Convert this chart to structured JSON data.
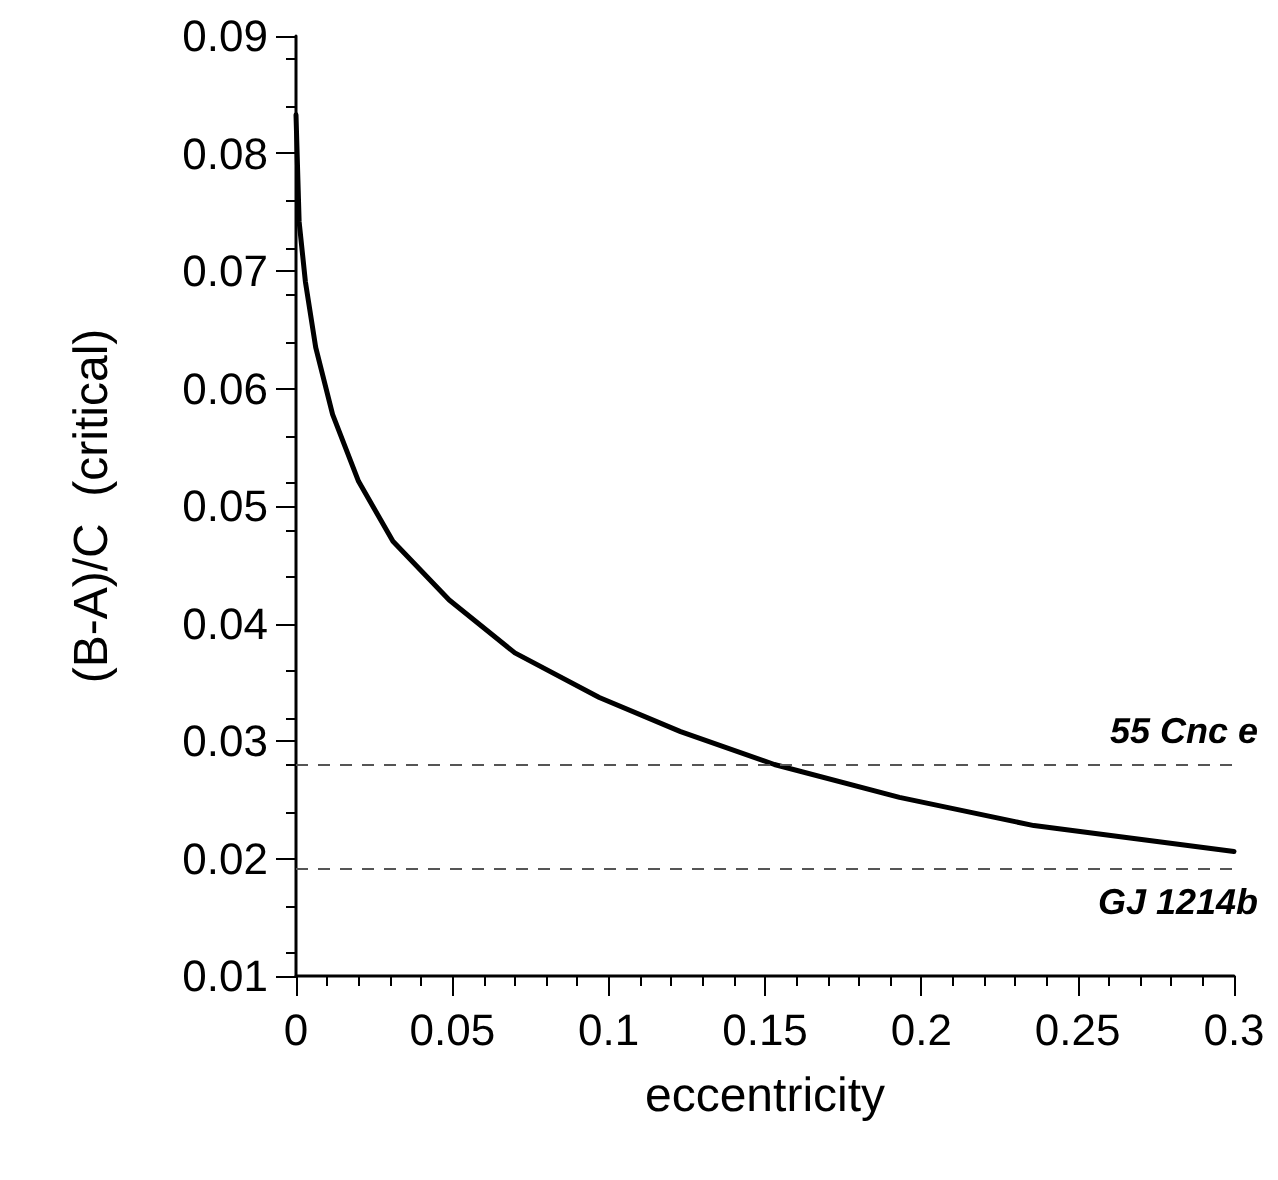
{
  "chart_data": {
    "type": "line",
    "xlabel": "eccentricity",
    "ylabel": "(B-A)/C  (critical)",
    "xlim": [
      0,
      0.3
    ],
    "xticks": [
      0,
      0.05,
      0.1,
      0.15,
      0.2,
      0.25,
      0.3
    ],
    "ylim": [
      0.01,
      0.09
    ],
    "yticks": [
      0.01,
      0.02,
      0.03,
      0.04,
      0.05,
      0.06,
      0.07,
      0.08,
      0.09
    ],
    "series": [
      {
        "color": "#000000",
        "x": [
          0,
          0.001,
          0.003,
          0.0063,
          0.0117,
          0.02,
          0.031,
          0.049,
          0.07,
          0.097,
          0.123,
          0.153,
          0.193,
          0.236,
          0.3
        ],
        "values": [
          0.0833,
          0.0742,
          0.0691,
          0.0635,
          0.0578,
          0.0521,
          0.047,
          0.042,
          0.0375,
          0.0337,
          0.0308,
          0.028,
          0.0252,
          0.0228,
          0.0206
        ]
      }
    ],
    "ref_lines": [
      {
        "axis": "y",
        "value": 0.028,
        "label": "55 Cnc e",
        "color": "#555555",
        "line_style": "dashed"
      },
      {
        "axis": "y",
        "value": 0.0192,
        "label": "GJ 1214b",
        "color": "#555555",
        "line_style": "dashed"
      }
    ],
    "grid": false,
    "marker": "none",
    "line_style": "solid"
  }
}
